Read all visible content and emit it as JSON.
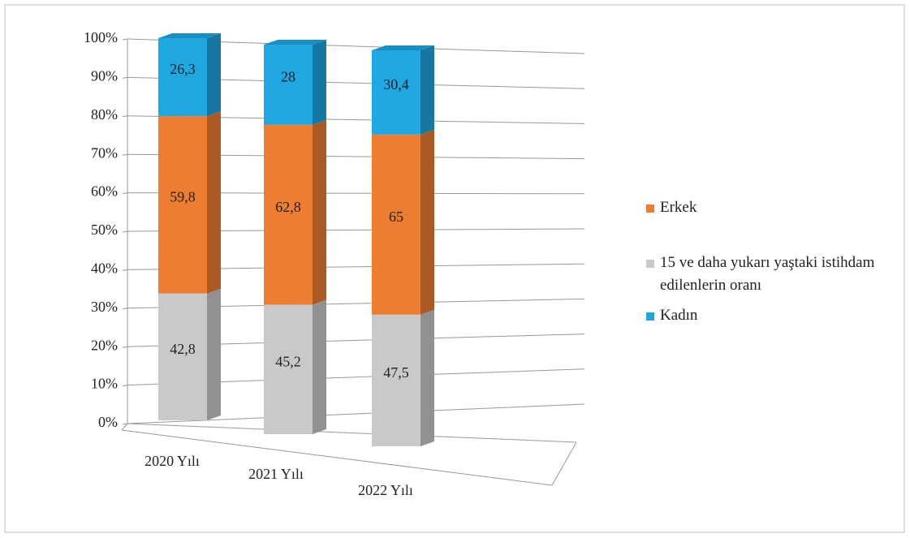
{
  "chart_data": {
    "type": "bar3d",
    "categories": [
      "2020 Yılı",
      "2021 Yılı",
      "2022 Yılı"
    ],
    "series": [
      {
        "name": "15 ve daha yukarı yaştaki istihdam edilenlerin oranı",
        "color": "#c9c9c9",
        "values": [
          42.8,
          45.2,
          47.5
        ],
        "value_labels": [
          "42,8",
          "45,2",
          "47,5"
        ]
      },
      {
        "name": "Erkek",
        "color": "#ed7d31",
        "values": [
          59.8,
          62.8,
          65
        ],
        "value_labels": [
          "59,8",
          "62,8",
          "65"
        ]
      },
      {
        "name": "Kadın",
        "color": "#1ea7e1",
        "values": [
          26.3,
          28,
          30.4
        ],
        "value_labels": [
          "26,3",
          "28",
          "30,4"
        ]
      }
    ],
    "ylim": [
      0,
      100
    ],
    "yticks": [
      {
        "value": 0,
        "label": "0%"
      },
      {
        "value": 10,
        "label": "10%"
      },
      {
        "value": 20,
        "label": "20%"
      },
      {
        "value": 30,
        "label": "30%"
      },
      {
        "value": 40,
        "label": "40%"
      },
      {
        "value": 50,
        "label": "50%"
      },
      {
        "value": 60,
        "label": "60%"
      },
      {
        "value": 70,
        "label": "70%"
      },
      {
        "value": 80,
        "label": "80%"
      },
      {
        "value": 90,
        "label": "90%"
      },
      {
        "value": 100,
        "label": "100%"
      }
    ],
    "grid": true
  }
}
